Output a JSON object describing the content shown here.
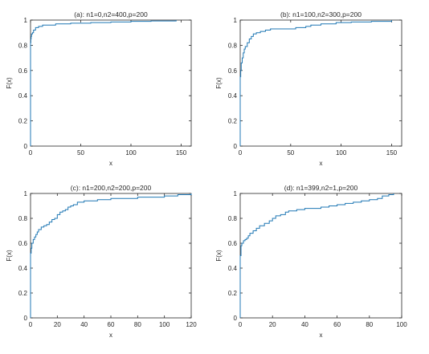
{
  "figure": {
    "line_color": "#1f77b4",
    "axis_color": "#262626"
  },
  "chart_data": [
    {
      "type": "line",
      "step": true,
      "title": "(a): n1=0,n2=400,p=200",
      "xlabel": "x",
      "ylabel": "F(x)",
      "xlim": [
        0,
        160
      ],
      "ylim": [
        0,
        1
      ],
      "xticks": [
        0,
        50,
        100,
        150
      ],
      "yticks": [
        0,
        0.2,
        0.4,
        0.6,
        0.8,
        1
      ],
      "xtick_labels": [
        "0",
        "50",
        "100",
        "150"
      ],
      "ytick_labels": [
        "0",
        "0.2",
        "0.4",
        "0.6",
        "0.8",
        "1"
      ],
      "series": [
        {
          "color": "#1f77b4",
          "x": [
            0,
            0,
            0.3,
            0.6,
            1,
            2,
            3,
            5,
            8,
            12,
            18,
            25,
            40,
            60,
            80,
            100,
            120,
            145
          ],
          "y": [
            0,
            0.82,
            0.85,
            0.87,
            0.89,
            0.9,
            0.92,
            0.94,
            0.95,
            0.96,
            0.96,
            0.97,
            0.975,
            0.98,
            0.985,
            0.99,
            0.993,
            1.0
          ]
        }
      ]
    },
    {
      "type": "line",
      "step": true,
      "title": "(b): n1=100,n2=300,p=200",
      "xlabel": "x",
      "ylabel": "F(x)",
      "xlim": [
        0,
        160
      ],
      "ylim": [
        0,
        1
      ],
      "xticks": [
        0,
        50,
        100,
        150
      ],
      "yticks": [
        0,
        0.2,
        0.4,
        0.6,
        0.8,
        1
      ],
      "xtick_labels": [
        "0",
        "50",
        "100",
        "150"
      ],
      "ytick_labels": [
        "0",
        "0.2",
        "0.4",
        "0.6",
        "0.8",
        "1"
      ],
      "series": [
        {
          "color": "#1f77b4",
          "x": [
            0,
            0,
            0.5,
            1,
            2,
            3,
            4,
            5,
            7,
            9,
            11,
            13,
            16,
            20,
            25,
            30,
            40,
            55,
            65,
            70,
            80,
            95,
            110,
            130,
            150
          ],
          "y": [
            0,
            0.55,
            0.6,
            0.66,
            0.7,
            0.74,
            0.77,
            0.79,
            0.82,
            0.85,
            0.87,
            0.89,
            0.9,
            0.91,
            0.92,
            0.93,
            0.93,
            0.94,
            0.95,
            0.96,
            0.97,
            0.98,
            0.985,
            0.99,
            1.0
          ]
        }
      ]
    },
    {
      "type": "line",
      "step": true,
      "title": "(c): n1=200,n2=200,p=200",
      "xlabel": "x",
      "ylabel": "F(x)",
      "xlim": [
        0,
        120
      ],
      "ylim": [
        0,
        1
      ],
      "xticks": [
        0,
        20,
        40,
        60,
        80,
        100,
        120
      ],
      "yticks": [
        0,
        0.2,
        0.4,
        0.6,
        0.8,
        1
      ],
      "xtick_labels": [
        "0",
        "20",
        "40",
        "60",
        "80",
        "100",
        "120"
      ],
      "ytick_labels": [
        "0",
        "0.2",
        "0.4",
        "0.6",
        "0.8",
        "1"
      ],
      "series": [
        {
          "color": "#1f77b4",
          "x": [
            0,
            0,
            0.5,
            1,
            2,
            3,
            4,
            5,
            6,
            8,
            10,
            12,
            14,
            16,
            18,
            20,
            22,
            24,
            26,
            28,
            30,
            32,
            35,
            40,
            50,
            60,
            80,
            100,
            110,
            120
          ],
          "y": [
            0,
            0.52,
            0.56,
            0.6,
            0.63,
            0.65,
            0.67,
            0.69,
            0.71,
            0.73,
            0.74,
            0.75,
            0.77,
            0.79,
            0.8,
            0.83,
            0.85,
            0.86,
            0.87,
            0.89,
            0.9,
            0.91,
            0.93,
            0.94,
            0.95,
            0.96,
            0.97,
            0.98,
            0.99,
            1.0
          ]
        }
      ]
    },
    {
      "type": "line",
      "step": true,
      "title": "(d): n1=399,n2=1,p=200",
      "xlabel": "x",
      "ylabel": "F(x)",
      "xlim": [
        0,
        100
      ],
      "ylim": [
        0,
        1
      ],
      "xticks": [
        0,
        20,
        40,
        60,
        80,
        100
      ],
      "yticks": [
        0,
        0.2,
        0.4,
        0.6,
        0.8,
        1
      ],
      "xtick_labels": [
        "0",
        "20",
        "40",
        "60",
        "80",
        "100"
      ],
      "ytick_labels": [
        "0",
        "0.2",
        "0.4",
        "0.6",
        "0.8",
        "1"
      ],
      "series": [
        {
          "color": "#1f77b4",
          "x": [
            0,
            0,
            0.5,
            1,
            2,
            3,
            4,
            5,
            6,
            8,
            10,
            12,
            15,
            18,
            20,
            22,
            25,
            28,
            30,
            35,
            40,
            50,
            55,
            60,
            65,
            70,
            75,
            80,
            85,
            88,
            92,
            95
          ],
          "y": [
            0,
            0.5,
            0.58,
            0.6,
            0.62,
            0.63,
            0.64,
            0.66,
            0.68,
            0.7,
            0.72,
            0.74,
            0.76,
            0.78,
            0.8,
            0.82,
            0.83,
            0.85,
            0.86,
            0.87,
            0.88,
            0.89,
            0.9,
            0.91,
            0.92,
            0.93,
            0.94,
            0.95,
            0.96,
            0.98,
            0.99,
            1.0
          ]
        }
      ]
    }
  ]
}
